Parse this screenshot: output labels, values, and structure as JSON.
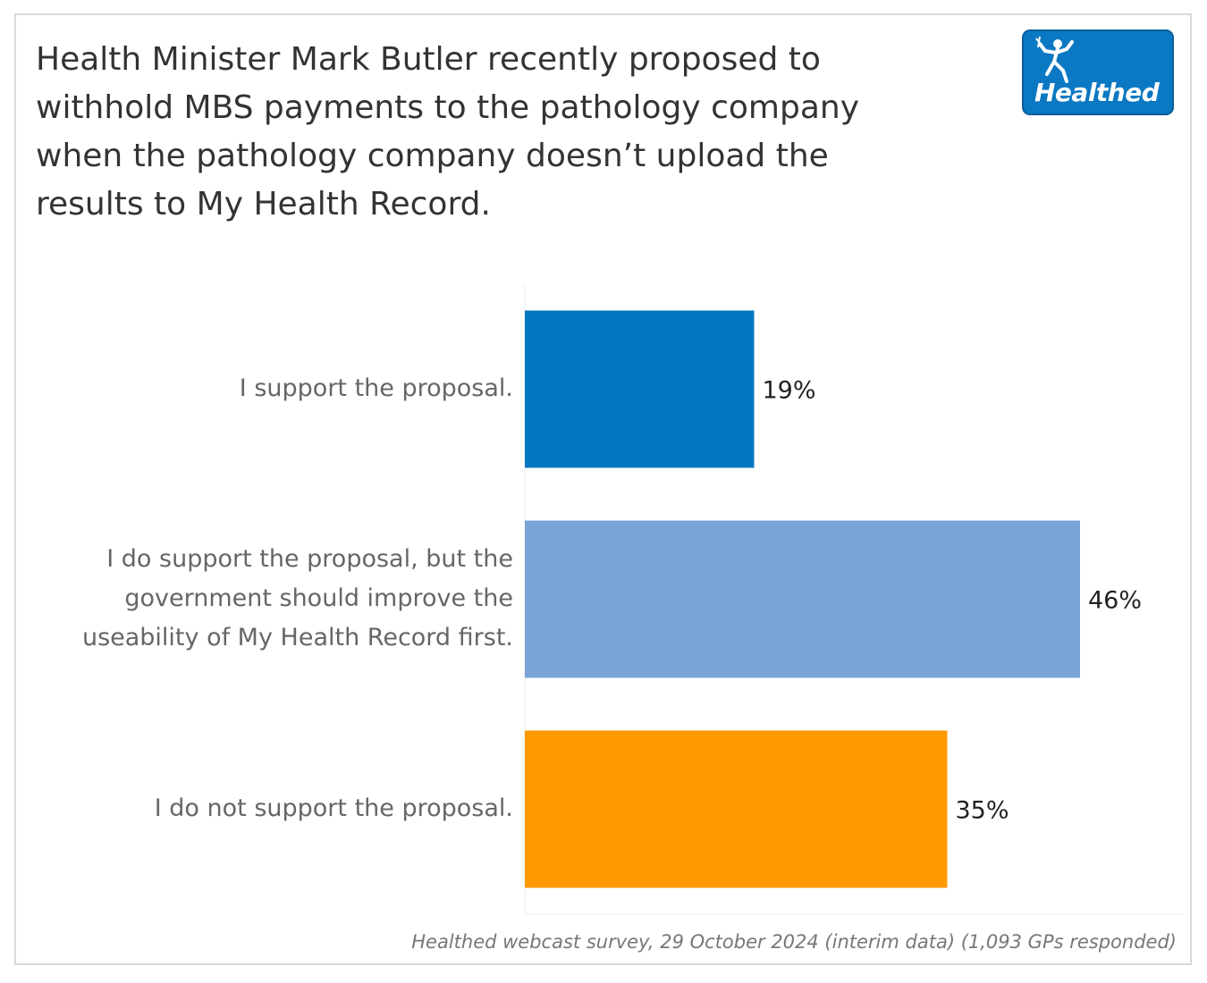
{
  "chart_data": {
    "type": "bar",
    "orientation": "horizontal",
    "title": "Health Minister Mark Butler recently proposed to withhold MBS payments to the pathology company when the pathology company doesn’t upload the results to My Health Record.",
    "categories": [
      "I support the proposal.",
      "I do support the proposal, but the government should improve the useability of My Health Record first.",
      "I do not support the proposal."
    ],
    "category_lines": [
      [
        "I support the proposal."
      ],
      [
        "I do support the proposal, but the",
        "government should improve the",
        "useability of My Health Record first."
      ],
      [
        "I do not support the proposal."
      ]
    ],
    "values": [
      19,
      46,
      35
    ],
    "value_labels": [
      "19%",
      "46%",
      "35%"
    ],
    "colors": [
      "#0077c0",
      "#7ba4d6",
      "#ff9900"
    ],
    "unit": "%",
    "xlim": [
      0,
      55
    ],
    "grid": false,
    "legend": "none",
    "source": "Healthed webcast survey, 29 October 2024 (interim data) (1,093 GPs responded)"
  },
  "logo": {
    "text": "Healthed",
    "color": "#0a78c2"
  }
}
